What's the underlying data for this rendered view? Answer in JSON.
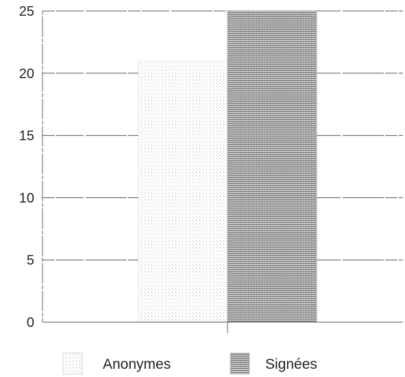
{
  "chart_data": {
    "type": "bar",
    "title": "",
    "xlabel": "",
    "ylabel": "",
    "ylim": [
      0,
      25
    ],
    "yticks": [
      0,
      5,
      10,
      15,
      20,
      25
    ],
    "grid": true,
    "legend_position": "bottom",
    "series": [
      {
        "name": "Anonymes",
        "values": [
          21
        ],
        "pattern": "dots",
        "color": "#d8d8d8"
      },
      {
        "name": "Signées",
        "values": [
          25
        ],
        "pattern": "horizontal-lines",
        "color": "#8c8c8c"
      }
    ]
  }
}
